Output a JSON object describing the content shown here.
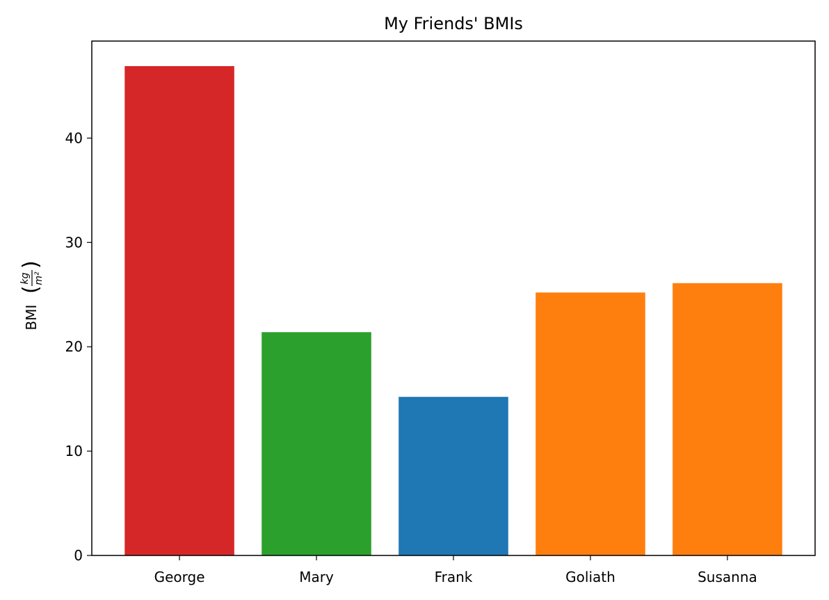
{
  "chart_data": {
    "type": "bar",
    "title": "My Friends' BMIs",
    "xlabel": "",
    "ylabel": {
      "text": "BMI",
      "unit_numerator": "kg",
      "unit_denominator": "m²"
    },
    "categories": [
      "George",
      "Mary",
      "Frank",
      "Goliath",
      "Susanna"
    ],
    "values": [
      46.9,
      21.4,
      15.2,
      25.2,
      26.1
    ],
    "colors": [
      "#d62728",
      "#2ca02c",
      "#1f77b4",
      "#ff7f0e",
      "#ff7f0e"
    ],
    "ylim": [
      0,
      49.3
    ],
    "yticks": [
      "0",
      "10",
      "20",
      "30",
      "40"
    ],
    "grid": false
  }
}
